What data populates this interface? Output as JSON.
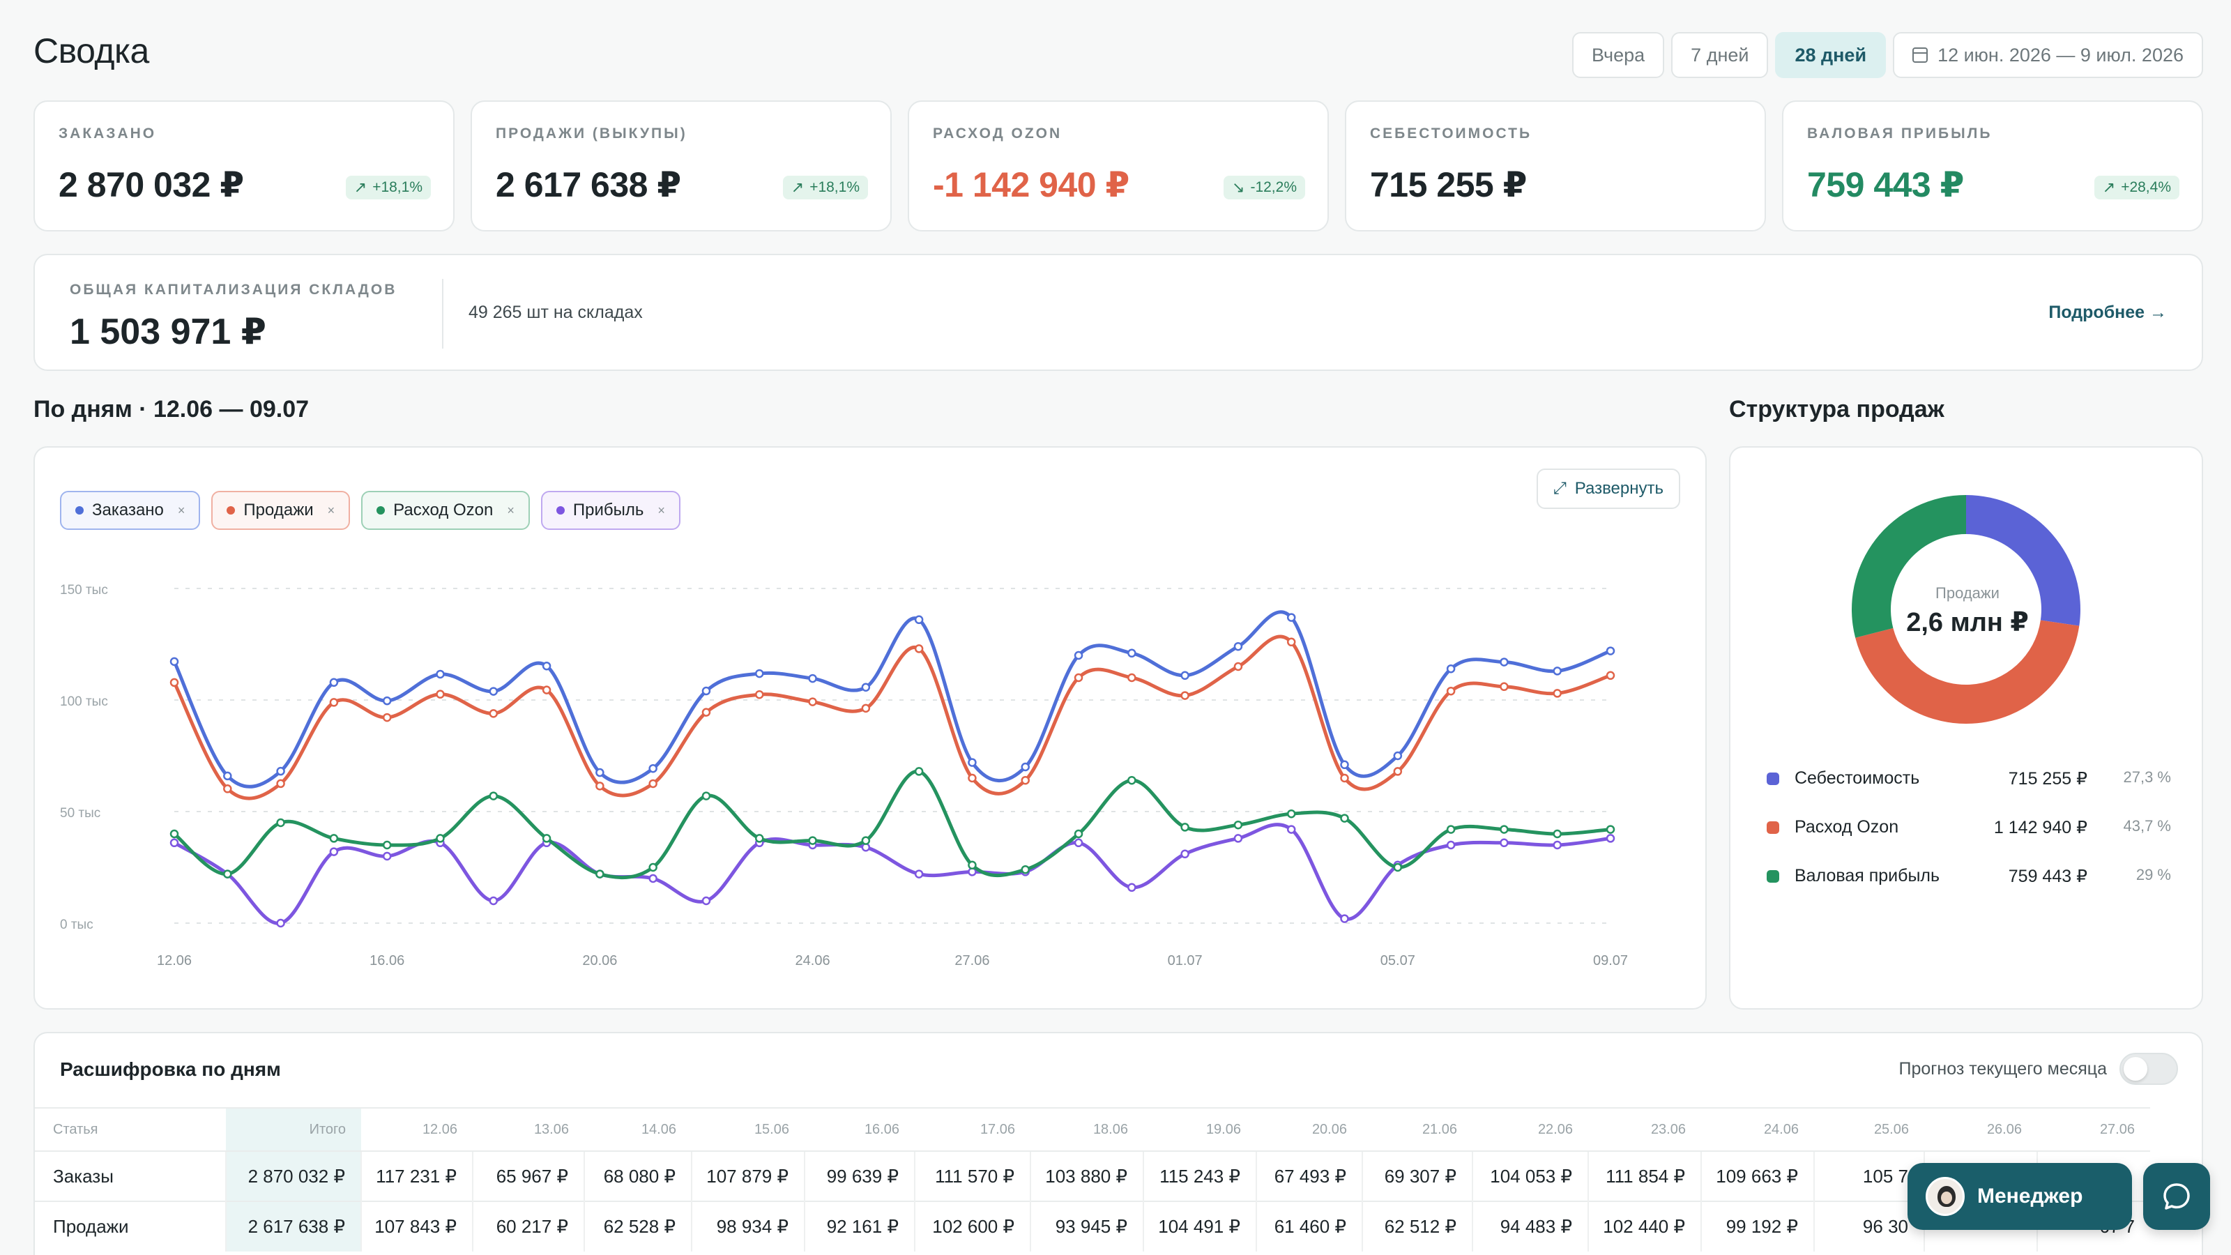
{
  "header": {
    "title": "Сводка",
    "ranges": [
      {
        "label": "Вчера",
        "active": false
      },
      {
        "label": "7 дней",
        "active": false
      },
      {
        "label": "28 дней",
        "active": true
      }
    ],
    "date_range": "12 июн. 2026 — 9 июл. 2026"
  },
  "kpis": [
    {
      "label": "ЗАКАЗАНО",
      "value": "2 870 032 ₽",
      "delta": "+18,1%",
      "trend": "up",
      "tone": "default"
    },
    {
      "label": "ПРОДАЖИ (ВЫКУПЫ)",
      "value": "2 617 638 ₽",
      "delta": "+18,1%",
      "trend": "up",
      "tone": "default"
    },
    {
      "label": "РАСХОД OZON",
      "value": "-1 142 940 ₽",
      "delta": "-12,2%",
      "trend": "down",
      "tone": "neg"
    },
    {
      "label": "СЕБЕСТОИМОСТЬ",
      "value": "715 255 ₽",
      "delta": "",
      "trend": "",
      "tone": "default"
    },
    {
      "label": "ВАЛОВАЯ ПРИБЫЛЬ",
      "value": "759 443 ₽",
      "delta": "+28,4%",
      "trend": "up",
      "tone": "pos"
    }
  ],
  "capital": {
    "label": "ОБЩАЯ КАПИТАЛИЗАЦИЯ СКЛАДОВ",
    "value": "1 503 971 ₽",
    "stock": "49 265 шт на складах",
    "more": "Подробнее →"
  },
  "daily_section": {
    "title": "По дням · 12.06 — 09.07",
    "expand_label": "Развернуть"
  },
  "structure_section": {
    "title": "Структура продаж"
  },
  "colors": {
    "ordered": "#4f6fd8",
    "sales": "#e06348",
    "ozon": "#24935f",
    "profit": "#7d56e0",
    "cost": "#5b63d6"
  },
  "chart_data": {
    "type": "line",
    "x": [
      "12.06",
      "13.06",
      "14.06",
      "15.06",
      "16.06",
      "17.06",
      "18.06",
      "19.06",
      "20.06",
      "21.06",
      "22.06",
      "23.06",
      "24.06",
      "25.06",
      "26.06",
      "27.06",
      "28.06",
      "29.06",
      "30.06",
      "01.07",
      "02.07",
      "03.07",
      "04.07",
      "05.07",
      "06.07",
      "07.07",
      "08.07",
      "09.07"
    ],
    "x_tick_labels": [
      "12.06",
      "16.06",
      "20.06",
      "24.06",
      "27.06",
      "01.07",
      "05.07",
      "09.07"
    ],
    "y_tick_labels": [
      "0 тыс",
      "50 тыс",
      "100 тыс",
      "150 тыс"
    ],
    "ylim": [
      0,
      150000
    ],
    "grid": true,
    "series": [
      {
        "name": "Заказано",
        "key": "ordered",
        "values": [
          117231,
          65967,
          68080,
          107879,
          99639,
          111570,
          103880,
          115243,
          67493,
          69307,
          104053,
          111854,
          109663,
          105700,
          136000,
          72000,
          70000,
          120000,
          121000,
          111000,
          124000,
          137000,
          71000,
          75000,
          114000,
          117000,
          113000,
          122000
        ]
      },
      {
        "name": "Продажи",
        "key": "sales",
        "values": [
          107843,
          60217,
          62528,
          98934,
          92161,
          102600,
          93945,
          104491,
          61460,
          62512,
          94483,
          102440,
          99192,
          96300,
          123000,
          65000,
          64000,
          110000,
          110000,
          102000,
          115000,
          126000,
          65000,
          68000,
          104000,
          106000,
          103000,
          111000
        ]
      },
      {
        "name": "Расход Ozon",
        "key": "ozon",
        "values": [
          40000,
          22000,
          45000,
          38000,
          35000,
          38000,
          57000,
          38000,
          22000,
          25000,
          57000,
          38000,
          37000,
          37000,
          68000,
          26000,
          24000,
          40000,
          64000,
          43000,
          44000,
          49000,
          47000,
          25000,
          42000,
          42000,
          40000,
          42000
        ]
      },
      {
        "name": "Прибыль",
        "key": "profit",
        "values": [
          36000,
          22000,
          0,
          32000,
          30000,
          36000,
          10000,
          36000,
          22000,
          20000,
          10000,
          36000,
          35000,
          34000,
          22000,
          23000,
          23000,
          36000,
          16000,
          31000,
          38000,
          42000,
          2000,
          26000,
          35000,
          36000,
          35000,
          38000
        ]
      }
    ]
  },
  "donut": {
    "center_label": "Продажи",
    "center_value": "2,6 млн ₽",
    "segments": [
      {
        "name": "Себестоимость",
        "value": "715 255 ₽",
        "pct": "27,3 %",
        "share": 27.3,
        "color": "#5b63d6"
      },
      {
        "name": "Расход Ozon",
        "value": "1 142 940 ₽",
        "pct": "43,7 %",
        "share": 43.7,
        "color": "#e06348"
      },
      {
        "name": "Валовая прибыль",
        "value": "759 443 ₽",
        "pct": "29 %",
        "share": 29.0,
        "color": "#24935f"
      }
    ]
  },
  "table": {
    "title": "Расшифровка по дням",
    "forecast_label": "Прогноз текущего месяца",
    "headers": [
      "Статья",
      "Итого",
      "12.06",
      "13.06",
      "14.06",
      "15.06",
      "16.06",
      "17.06",
      "18.06",
      "19.06",
      "20.06",
      "21.06",
      "22.06",
      "23.06",
      "24.06",
      "25.06",
      "26.06",
      "27.06"
    ],
    "rows": [
      {
        "name": "Заказы",
        "cells": [
          "2 870 032 ₽",
          "117 231 ₽",
          "65 967 ₽",
          "68 080 ₽",
          "107 879 ₽",
          "99 639 ₽",
          "111 570 ₽",
          "103 880 ₽",
          "115 243 ₽",
          "67 493 ₽",
          "69 307 ₽",
          "104 053 ₽",
          "111 854 ₽",
          "109 663 ₽",
          "105 7",
          "",
          ""
        ]
      },
      {
        "name": "Продажи",
        "cells": [
          "2 617 638 ₽",
          "107 843 ₽",
          "60 217 ₽",
          "62 528 ₽",
          "98 934 ₽",
          "92 161 ₽",
          "102 600 ₽",
          "93 945 ₽",
          "104 491 ₽",
          "61 460 ₽",
          "62 512 ₽",
          "94 483 ₽",
          "102 440 ₽",
          "99 192 ₽",
          "96 30",
          "",
          "67 7"
        ]
      }
    ]
  },
  "floating": {
    "manager_label": "Менеджер"
  }
}
